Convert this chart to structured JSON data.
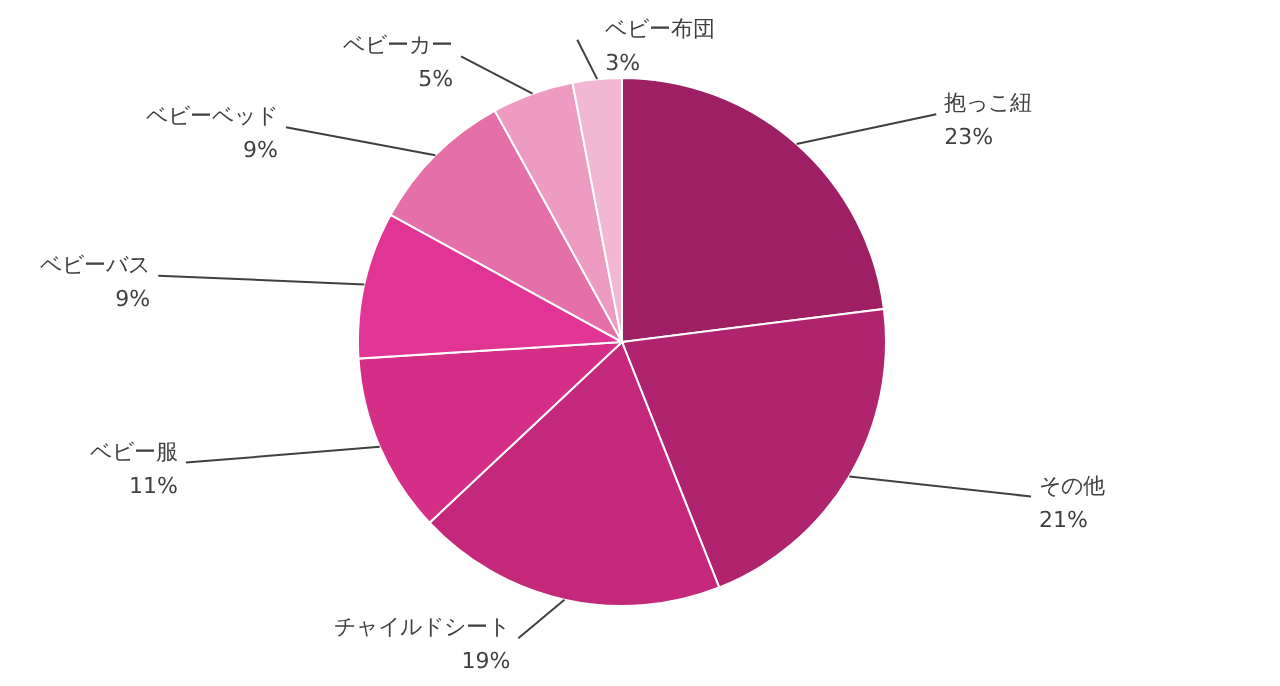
{
  "chart_data": {
    "type": "pie",
    "categories": [
      "抱っこ紐",
      "その他",
      "チャイルドシート",
      "ベビー服",
      "ベビーバス",
      "ベビーベッド",
      "ベビーカー",
      "ベビー布団"
    ],
    "values": [
      23,
      21,
      19,
      11,
      9,
      9,
      5,
      3
    ],
    "value_labels": [
      "23%",
      "21%",
      "19%",
      "11%",
      "9%",
      "9%",
      "5%",
      "3%"
    ],
    "colors": [
      "#9e1f63",
      "#b0246f",
      "#c4287a",
      "#d42e86",
      "#e03594",
      "#e56fa8",
      "#ed9bc0",
      "#f2b8d3"
    ]
  }
}
